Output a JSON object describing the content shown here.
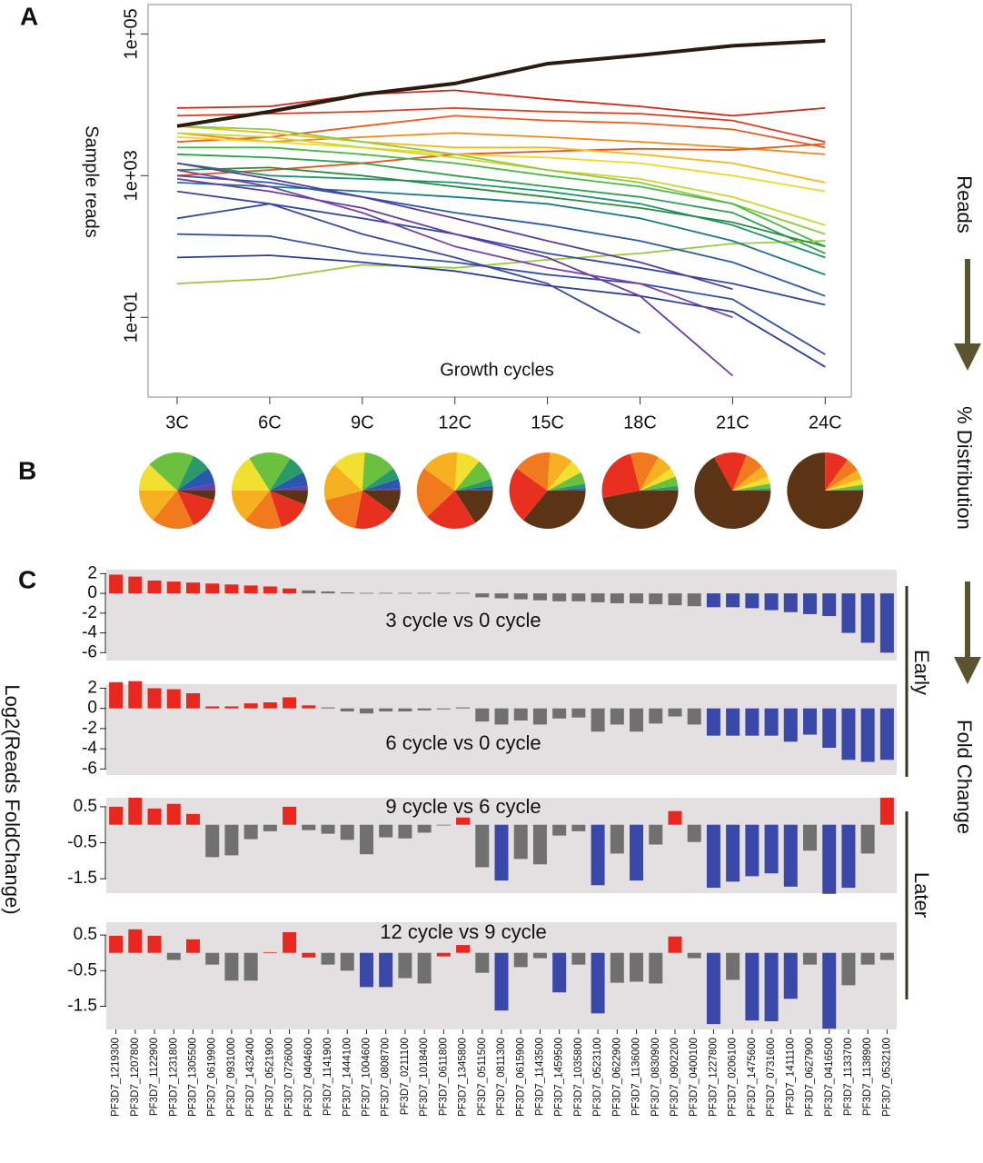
{
  "panel_letters": {
    "a": "A",
    "b": "B",
    "c": "C"
  },
  "side_labels": {
    "reads": "Reads",
    "distribution": "% Distribution",
    "fold_change": "Fold Change"
  },
  "group_labels": {
    "early": "Early",
    "later": "Later"
  },
  "fold_ylabel": "Log2(Reads FoldChange)",
  "chart_data": [
    {
      "type": "line",
      "xlabel": "Growth cycles",
      "ylabel": "Sample reads",
      "log_scale": true,
      "categories": [
        "3C",
        "6C",
        "9C",
        "12C",
        "15C",
        "18C",
        "21C",
        "24C"
      ],
      "ylim": [
        0.75,
        260000
      ],
      "yticks": [
        {
          "value": 10,
          "label": "1e+01"
        },
        {
          "value": 1000,
          "label": "1e+03"
        },
        {
          "value": 100000,
          "label": "1e+05"
        }
      ],
      "series": [
        {
          "color": "#d02818",
          "values": [
            9000,
            9500,
            14000,
            16000,
            12000,
            9500,
            7000,
            9000
          ]
        },
        {
          "color": "#e03a1c",
          "values": [
            7000,
            7500,
            8000,
            9000,
            8000,
            7500,
            6000,
            3000
          ]
        },
        {
          "color": "#ee5a1c",
          "values": [
            3000,
            3500,
            5000,
            7000,
            6000,
            5500,
            4500,
            2500
          ]
        },
        {
          "color": "#f28a1a",
          "values": [
            4000,
            3000,
            3500,
            4000,
            3500,
            3000,
            2500,
            2000
          ]
        },
        {
          "color": "#e8501c",
          "values": [
            1000,
            1200,
            1500,
            2000,
            2200,
            2400,
            2300,
            2800
          ]
        },
        {
          "color": "#f6b81c",
          "values": [
            5000,
            4000,
            3000,
            2500,
            2500,
            2000,
            1500,
            800
          ]
        },
        {
          "color": "#f2d820",
          "values": [
            3500,
            3000,
            2500,
            2000,
            1800,
            1500,
            1000,
            600
          ]
        },
        {
          "color": "#c8d830",
          "values": [
            4000,
            3500,
            2500,
            1800,
            1200,
            900,
            500,
            200
          ]
        },
        {
          "color": "#8ccc3c",
          "values": [
            5000,
            4500,
            3000,
            2000,
            1200,
            800,
            400,
            150
          ]
        },
        {
          "color": "#4cb84a",
          "values": [
            2500,
            2500,
            2000,
            1500,
            1000,
            700,
            400,
            100
          ]
        },
        {
          "color": "#2aa050",
          "values": [
            2000,
            1800,
            1500,
            1000,
            700,
            500,
            300,
            80
          ]
        },
        {
          "color": "#9cc83c",
          "values": [
            30,
            35,
            55,
            50,
            65,
            80,
            110,
            120
          ]
        },
        {
          "color": "#1e9470",
          "values": [
            1500,
            1000,
            900,
            800,
            600,
            400,
            200,
            70
          ]
        },
        {
          "color": "#2a8a40",
          "values": [
            1200,
            1300,
            1000,
            700,
            500,
            350,
            220,
            100
          ]
        },
        {
          "color": "#1a7a8c",
          "values": [
            800,
            700,
            600,
            500,
            400,
            250,
            120,
            40
          ]
        },
        {
          "color": "#2a5aa8",
          "values": [
            1000,
            800,
            500,
            300,
            200,
            120,
            60,
            20
          ]
        },
        {
          "color": "#2e4aa0",
          "values": [
            250,
            400,
            250,
            150,
            80,
            50,
            30,
            15
          ]
        },
        {
          "color": "#3050a8",
          "values": [
            150,
            140,
            80,
            60,
            40,
            30,
            18,
            3
          ]
        },
        {
          "color": "#283c98",
          "values": [
            70,
            75,
            60,
            45,
            28,
            20,
            12,
            2
          ]
        },
        {
          "color": "#3a48a0",
          "values": [
            600,
            400,
            150,
            70,
            30,
            6,
            null,
            null
          ]
        },
        {
          "color": "#6a3aa0",
          "values": [
            900,
            600,
            350,
            150,
            70,
            20,
            1.5,
            null
          ]
        },
        {
          "color": "#5a3c9c",
          "values": [
            1500,
            900,
            500,
            250,
            120,
            60,
            25,
            null
          ]
        },
        {
          "color": "#7a40a8",
          "values": [
            1200,
            700,
            300,
            100,
            50,
            30,
            10,
            null
          ]
        },
        {
          "color": "#2a1a10",
          "values": [
            5000,
            8000,
            14000,
            20000,
            38000,
            50000,
            68000,
            80000
          ]
        }
      ]
    },
    {
      "type": "pie",
      "values": [
        4,
        14,
        18,
        14,
        12,
        20,
        8,
        7,
        3
      ],
      "colors": [
        "#5a3414",
        "#e83020",
        "#f27a1e",
        "#f6b020",
        "#f2e030",
        "#6cc040",
        "#2a9a6a",
        "#2a58b0",
        "#6a40a8"
      ]
    },
    {
      "type": "pie",
      "values": [
        6,
        14,
        16,
        14,
        16,
        18,
        8,
        6,
        2
      ],
      "colors": [
        "#5a3414",
        "#e83020",
        "#f27a1e",
        "#f6b020",
        "#f2e030",
        "#6cc040",
        "#2a9a6a",
        "#2a58b0",
        "#6a40a8"
      ]
    },
    {
      "type": "pie",
      "values": [
        10,
        18,
        18,
        16,
        14,
        14,
        5,
        4,
        1
      ],
      "colors": [
        "#5a3414",
        "#e83020",
        "#f27a1e",
        "#f6b020",
        "#f2e030",
        "#6cc040",
        "#2a9a6a",
        "#2a58b0",
        "#6a40a8"
      ]
    },
    {
      "type": "pie",
      "values": [
        16,
        22,
        22,
        16,
        10,
        9,
        3,
        1.5,
        0.5
      ],
      "colors": [
        "#5a3414",
        "#e83020",
        "#f27a1e",
        "#f6b020",
        "#f2e030",
        "#6cc040",
        "#2a9a6a",
        "#2a58b0",
        "#6a40a8"
      ]
    },
    {
      "type": "pie",
      "values": [
        36,
        24,
        16,
        10,
        6,
        5,
        2,
        0.7,
        0.3
      ],
      "colors": [
        "#5a3414",
        "#e83020",
        "#f27a1e",
        "#f6b020",
        "#f2e030",
        "#6cc040",
        "#2a9a6a",
        "#2a58b0",
        "#6a40a8"
      ]
    },
    {
      "type": "pie",
      "values": [
        47,
        24,
        12,
        7,
        4,
        4,
        1.5,
        0.4,
        0.1
      ],
      "colors": [
        "#5a3414",
        "#e83020",
        "#f27a1e",
        "#f6b020",
        "#f2e030",
        "#6cc040",
        "#2a9a6a",
        "#2a58b0",
        "#6a40a8"
      ]
    },
    {
      "type": "pie",
      "values": [
        67,
        14,
        8,
        5,
        3,
        2,
        0.7,
        0.2,
        0.1
      ],
      "colors": [
        "#5a3414",
        "#e83020",
        "#f27a1e",
        "#f6b020",
        "#f2e030",
        "#6cc040",
        "#2a9a6a",
        "#2a58b0",
        "#6a40a8"
      ]
    },
    {
      "type": "pie",
      "values": [
        75,
        10,
        6,
        4,
        2.5,
        1.8,
        0.5,
        0.15,
        0.05
      ],
      "colors": [
        "#5a3414",
        "#e83020",
        "#f27a1e",
        "#f6b020",
        "#f2e030",
        "#6cc040",
        "#2a9a6a",
        "#2a58b0",
        "#6a40a8"
      ]
    },
    {
      "type": "bar",
      "title": "3 cycle vs 0 cycle",
      "ylim": [
        -6.8,
        2.4
      ],
      "yticks": [
        2,
        0,
        -2,
        -4,
        -6
      ],
      "values": [
        1.9,
        1.7,
        1.3,
        1.2,
        1.1,
        1.0,
        0.9,
        0.8,
        0.7,
        0.5,
        0.3,
        0.2,
        0.1,
        0.05,
        0.05,
        0.05,
        0.05,
        0.05,
        0.05,
        -0.4,
        -0.5,
        -0.6,
        -0.7,
        -0.8,
        -0.8,
        -0.9,
        -1.0,
        -1.0,
        -1.1,
        -1.2,
        -1.3,
        -1.4,
        -1.4,
        -1.5,
        -1.7,
        -1.9,
        -2.1,
        -2.3,
        -4.0,
        -5.0,
        -6.0
      ],
      "colors": [
        "#e8281e",
        "#e8281e",
        "#e8281e",
        "#e8281e",
        "#e8281e",
        "#e8281e",
        "#e8281e",
        "#e8281e",
        "#e8281e",
        "#e8281e",
        "#707070",
        "#707070",
        "#707070",
        "#707070",
        "#707070",
        "#707070",
        "#707070",
        "#707070",
        "#707070",
        "#707070",
        "#707070",
        "#707070",
        "#707070",
        "#707070",
        "#707070",
        "#707070",
        "#707070",
        "#707070",
        "#707070",
        "#707070",
        "#707070",
        "#3a48a8",
        "#3a48a8",
        "#3a48a8",
        "#3a48a8",
        "#3a48a8",
        "#3a48a8",
        "#3a48a8",
        "#3a48a8",
        "#3a48a8",
        "#3a48a8"
      ]
    },
    {
      "type": "bar",
      "title": "6 cycle vs 0 cycle",
      "ylim": [
        -6.6,
        2.4
      ],
      "yticks": [
        2,
        0,
        -2,
        -4,
        -6
      ],
      "values": [
        2.6,
        2.7,
        2.0,
        1.9,
        1.5,
        0.2,
        0.2,
        0.5,
        0.6,
        1.1,
        0.3,
        0.1,
        -0.3,
        -0.5,
        -0.3,
        -0.3,
        -0.2,
        -0.1,
        0.1,
        -1.3,
        -1.6,
        -1.2,
        -1.6,
        -1.0,
        -0.9,
        -2.3,
        -1.6,
        -2.3,
        -1.5,
        -0.8,
        -1.6,
        -2.7,
        -2.7,
        -2.7,
        -2.7,
        -3.3,
        -2.6,
        -3.9,
        -5.1,
        -5.3,
        -5.1
      ],
      "colors": [
        "#e8281e",
        "#e8281e",
        "#e8281e",
        "#e8281e",
        "#e8281e",
        "#e8281e",
        "#e8281e",
        "#e8281e",
        "#e8281e",
        "#e8281e",
        "#e8281e",
        "#707070",
        "#707070",
        "#707070",
        "#707070",
        "#707070",
        "#707070",
        "#707070",
        "#707070",
        "#707070",
        "#707070",
        "#707070",
        "#707070",
        "#707070",
        "#707070",
        "#707070",
        "#707070",
        "#707070",
        "#707070",
        "#707070",
        "#707070",
        "#3a48a8",
        "#3a48a8",
        "#3a48a8",
        "#3a48a8",
        "#3a48a8",
        "#3a48a8",
        "#3a48a8",
        "#3a48a8",
        "#3a48a8",
        "#3a48a8"
      ]
    },
    {
      "type": "bar",
      "title": "9 cycle vs 6 cycle",
      "ylim": [
        -1.9,
        0.75
      ],
      "yticks": [
        0.5,
        -0.5,
        -1.5
      ],
      "values": [
        0.5,
        0.75,
        0.45,
        0.58,
        0.3,
        -0.9,
        -0.85,
        -0.4,
        -0.18,
        0.5,
        -0.15,
        -0.25,
        -0.42,
        -0.82,
        -0.35,
        -0.38,
        -0.22,
        -0.02,
        0.2,
        -1.18,
        -1.55,
        -0.95,
        -1.1,
        -0.3,
        -0.18,
        -1.68,
        -0.8,
        -1.55,
        -0.55,
        0.38,
        -0.48,
        -1.75,
        -1.58,
        -1.43,
        -1.35,
        -1.72,
        -0.72,
        -1.92,
        -1.75,
        -0.8,
        0.75
      ],
      "colors": [
        "#e8281e",
        "#e8281e",
        "#e8281e",
        "#e8281e",
        "#e8281e",
        "#707070",
        "#707070",
        "#707070",
        "#707070",
        "#e8281e",
        "#707070",
        "#707070",
        "#707070",
        "#707070",
        "#707070",
        "#707070",
        "#707070",
        "#707070",
        "#e8281e",
        "#707070",
        "#3a48a8",
        "#707070",
        "#707070",
        "#707070",
        "#707070",
        "#3a48a8",
        "#707070",
        "#3a48a8",
        "#707070",
        "#e8281e",
        "#707070",
        "#3a48a8",
        "#3a48a8",
        "#3a48a8",
        "#3a48a8",
        "#3a48a8",
        "#707070",
        "#3a48a8",
        "#3a48a8",
        "#707070",
        "#e8281e"
      ]
    },
    {
      "type": "bar",
      "title": "12 cycle vs 9 cycle",
      "ylim": [
        -2.15,
        0.86
      ],
      "yticks": [
        0.5,
        -0.5,
        -1.5
      ],
      "categories": [
        "PF3D7_1219300",
        "PF3D7_1207800",
        "PF3D7_1122900",
        "PF3D7_1231800",
        "PF3D7_1305500",
        "PF3D7_0619900",
        "PF3D7_0931000",
        "PF3D7_1432400",
        "PF3D7_0521900",
        "PF3D7_0726000",
        "PF3D7_0404600",
        "PF3D7_1141900",
        "PF3D7_1444100",
        "PF3D7_1004600",
        "PF3D7_0808700",
        "PF3D7_0211100",
        "PF3D7_1018400",
        "PF3D7_0611800",
        "PF3D7_1345800",
        "PF3D7_0511500",
        "PF3D7_0811300",
        "PF3D7_0615900",
        "PF3D7_1143500",
        "PF3D7_1459500",
        "PF3D7_1035800",
        "PF3D7_0523100",
        "PF3D7_0622900",
        "PF3D7_1136000",
        "PF3D7_0830900",
        "PF3D7_0902200",
        "PF3D7_0400100",
        "PF3D7_1227800",
        "PF3D7_0206100",
        "PF3D7_1475600",
        "PF3D7_0731600",
        "PF3D7_1411100",
        "PF3D7_0627900",
        "PF3D7_0416500",
        "PF3D7_1133700",
        "PF3D7_1138900",
        "PF3D7_0532100"
      ],
      "values": [
        0.48,
        0.66,
        0.48,
        -0.2,
        0.38,
        -0.33,
        -0.78,
        -0.78,
        0.02,
        0.58,
        -0.13,
        -0.33,
        -0.5,
        -0.96,
        -0.96,
        -0.71,
        -0.86,
        -0.1,
        0.22,
        -0.56,
        -1.62,
        -0.4,
        -0.15,
        -1.11,
        -0.33,
        -1.7,
        -0.84,
        -0.81,
        -0.86,
        0.46,
        -0.15,
        -2.0,
        -0.76,
        -1.9,
        -1.92,
        -1.29,
        -0.33,
        -2.13,
        -0.91,
        -0.33,
        -0.2
      ],
      "colors": [
        "#e8281e",
        "#e8281e",
        "#e8281e",
        "#707070",
        "#e8281e",
        "#707070",
        "#707070",
        "#707070",
        "#e8281e",
        "#e8281e",
        "#e8281e",
        "#707070",
        "#707070",
        "#3a48a8",
        "#3a48a8",
        "#707070",
        "#707070",
        "#e8281e",
        "#e8281e",
        "#707070",
        "#3a48a8",
        "#707070",
        "#707070",
        "#3a48a8",
        "#707070",
        "#3a48a8",
        "#707070",
        "#707070",
        "#707070",
        "#e8281e",
        "#707070",
        "#3a48a8",
        "#707070",
        "#3a48a8",
        "#3a48a8",
        "#3a48a8",
        "#707070",
        "#3a48a8",
        "#707070",
        "#707070",
        "#707070"
      ]
    }
  ]
}
